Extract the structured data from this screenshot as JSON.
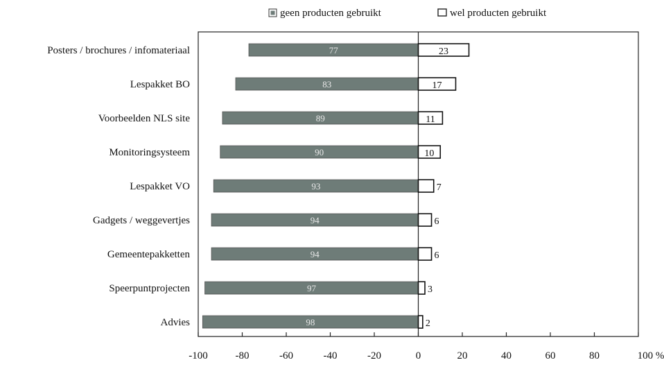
{
  "chart_data": {
    "type": "bar",
    "orientation": "horizontal",
    "stacked": "diverging",
    "legend": {
      "placement": "top",
      "entries": [
        {
          "name": "geen producten gebruikt",
          "color": "#6e7c78"
        },
        {
          "name": "wel producten gebruikt",
          "color": "#ffffff"
        }
      ]
    },
    "categories": [
      "Posters / brochures / infomateriaal",
      "Lespakket BO",
      "Voorbeelden NLS site",
      "Monitoringsysteem",
      "Lespakket VO",
      "Gadgets / weggevertjes",
      "Gemeentepakketten",
      "Speerpuntprojecten",
      "Advies"
    ],
    "series": [
      {
        "name": "geen producten gebruikt",
        "values": [
          77,
          83,
          89,
          90,
          93,
          94,
          94,
          97,
          98
        ]
      },
      {
        "name": "wel producten gebruikt",
        "values": [
          23,
          17,
          11,
          10,
          7,
          6,
          6,
          3,
          2
        ]
      }
    ],
    "xlim": [
      -100,
      100
    ],
    "x_ticks": [
      "-100",
      "-80",
      "-60",
      "-40",
      "-20",
      "0",
      "20",
      "40",
      "60",
      "80",
      "100 %"
    ],
    "grid": false,
    "colors": {
      "negative_fill": "#6e7c78",
      "positive_fill": "#ffffff",
      "stroke": "#111111"
    }
  }
}
